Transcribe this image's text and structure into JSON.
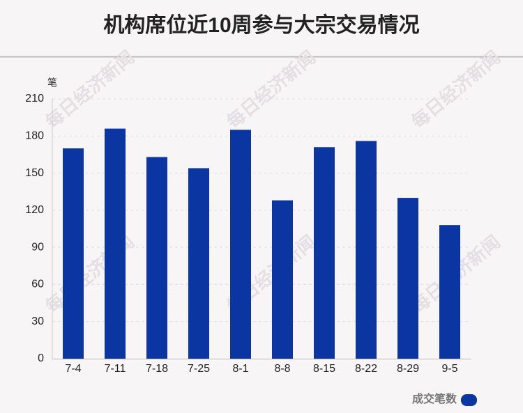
{
  "chart_data": {
    "type": "bar",
    "title": "机构席位近10周参与大宗交易情况",
    "y_unit": "笔",
    "categories": [
      "7-4",
      "7-11",
      "7-18",
      "7-25",
      "8-1",
      "8-8",
      "8-15",
      "8-22",
      "8-29",
      "9-5"
    ],
    "series": [
      {
        "name": "成交笔数",
        "color": "#0b35a0",
        "values": [
          170,
          186,
          163,
          154,
          185,
          128,
          171,
          176,
          130,
          108
        ]
      }
    ],
    "ylim": [
      0,
      210
    ],
    "yticks": [
      0,
      30,
      60,
      90,
      120,
      150,
      180,
      210
    ],
    "grid": true,
    "legend": "bottom-right",
    "watermark": "每日经济新闻"
  }
}
